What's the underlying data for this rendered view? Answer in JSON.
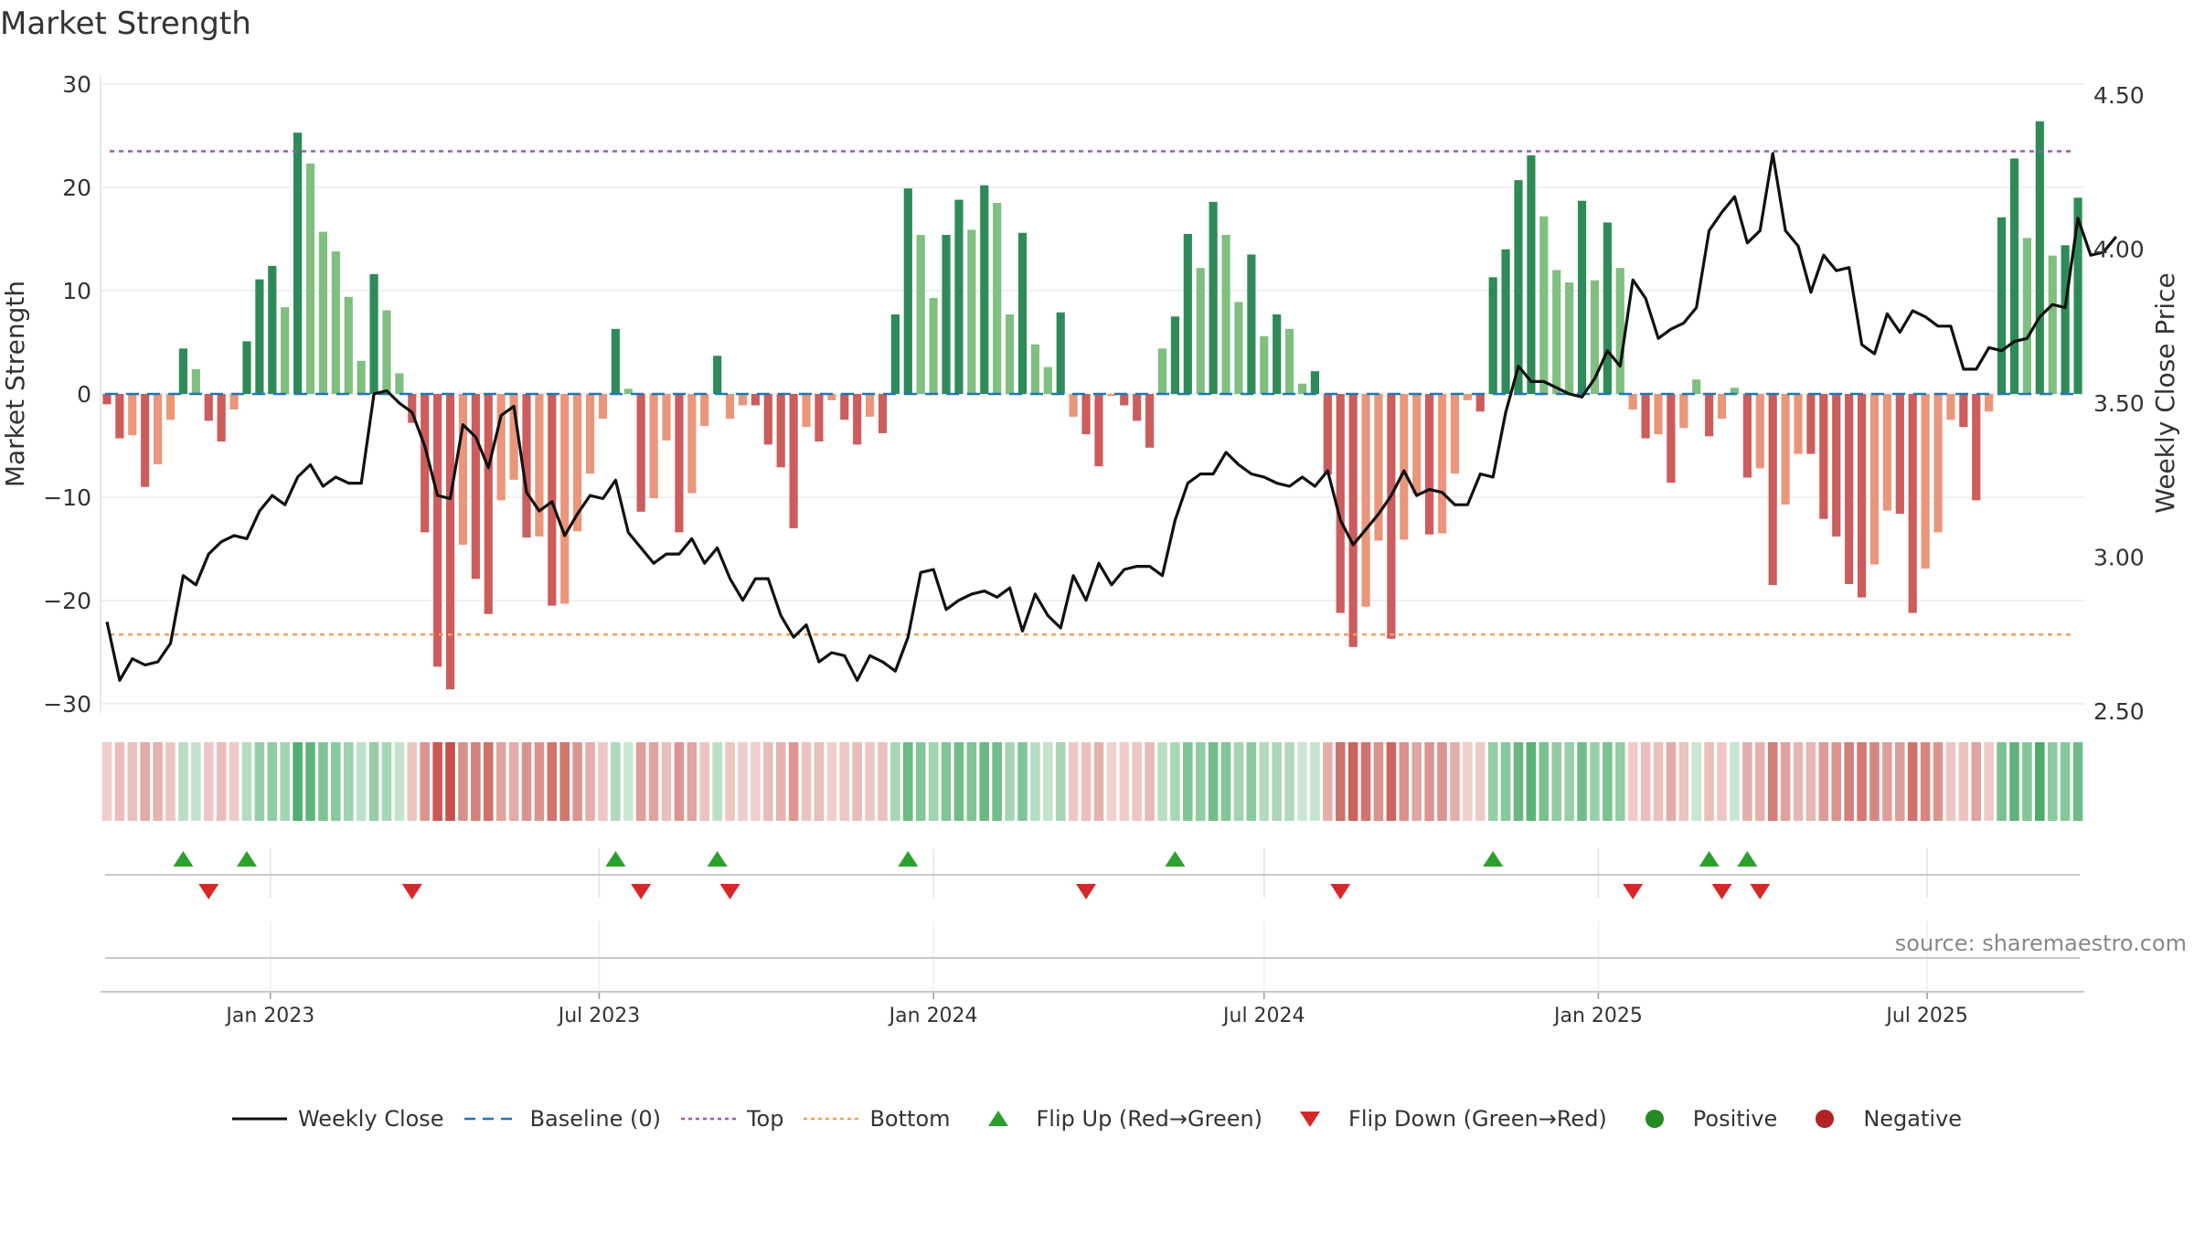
{
  "title": "Market Strength",
  "source": "source: sharemaestro.com",
  "chart_data": {
    "type": "bar",
    "weeks_start": "2022-10-03",
    "x_ticks": [
      "Jan 2023",
      "Jul 2023",
      "Jan 2024",
      "Jul 2024",
      "Jan 2025",
      "Jul 2025"
    ],
    "x_tick_dates": [
      "2023-01-01",
      "2023-07-01",
      "2024-01-01",
      "2024-07-01",
      "2025-01-01",
      "2025-07-01"
    ],
    "y_left": {
      "label": "Market Strength",
      "ylim": [
        -30,
        30
      ],
      "ticks": [
        "30",
        "20",
        "10",
        "0",
        "−10",
        "−20",
        "−30"
      ],
      "tick_values": [
        30,
        20,
        10,
        0,
        -10,
        -20,
        -30
      ]
    },
    "y_right": {
      "label": "Weekly Close Price",
      "ylim": [
        2.5,
        4.5
      ],
      "ticks": [
        "4.50",
        "4.00",
        "3.50",
        "3.00",
        "2.50"
      ],
      "tick_values": [
        4.5,
        4.0,
        3.5,
        3.0,
        2.5
      ]
    },
    "top_line": 23.5,
    "bottom_line": -23.3,
    "baseline": 0,
    "grid": true,
    "legend_position": "bottom",
    "series": [
      {
        "name": "Market Strength",
        "values": [
          -1,
          -4.3,
          -4,
          -9,
          -6.8,
          -2.5,
          4.4,
          2.4,
          -2.6,
          -4.6,
          -1.5,
          5.1,
          11.1,
          12.4,
          8.4,
          25.3,
          22.3,
          15.7,
          13.8,
          9.4,
          3.2,
          11.6,
          8.1,
          2,
          -2.8,
          -13.4,
          -26.4,
          -28.6,
          -14.6,
          -17.9,
          -21.3,
          -10.3,
          -8.3,
          -13.9,
          -13.8,
          -20.5,
          -20.3,
          -13.3,
          -7.7,
          -2.4,
          6.3,
          0.5,
          -11.4,
          -10.1,
          -4.5,
          -13.4,
          -9.6,
          -3.1,
          3.7,
          -2.4,
          -1.1,
          -1.1,
          -4.9,
          -7.1,
          -13,
          -3.2,
          -4.6,
          -0.6,
          -2.5,
          -4.9,
          -2.2,
          -3.8,
          7.7,
          19.9,
          15.4,
          9.3,
          15.4,
          18.8,
          15.9,
          20.2,
          18.5,
          7.7,
          15.6,
          4.8,
          2.6,
          7.9,
          -2.2,
          -3.9,
          -7,
          -0.2,
          -1.1,
          -2.6,
          -5.2,
          4.4,
          7.5,
          15.5,
          12.2,
          18.6,
          15.4,
          8.9,
          13.5,
          5.6,
          7.7,
          6.3,
          1,
          2.2,
          -7.8,
          -21.2,
          -24.5,
          -20.6,
          -14.2,
          -23.7,
          -14.1,
          -9.7,
          -13.6,
          -13.5,
          -7.7,
          -0.6,
          -1.7,
          11.3,
          14,
          20.7,
          23.1,
          17.2,
          12,
          10.8,
          18.7,
          11,
          16.6,
          12.2,
          -1.5,
          -4.3,
          -3.9,
          -8.6,
          -3.3,
          1.4,
          -4.1,
          -2.4,
          0.6,
          -8.1,
          -7.2,
          -18.5,
          -10.7,
          -5.8,
          -5.8,
          -12.1,
          -13.8,
          -18.4,
          -19.7,
          -16.5,
          -11.3,
          -11.6,
          -21.2,
          -16.9,
          -13.4,
          -2.5,
          -3.2,
          -10.3,
          -1.7,
          17.1,
          22.8,
          15.1,
          26.4,
          13.4,
          14.4,
          19
        ]
      },
      {
        "name": "Weekly Close",
        "values": [
          2.79,
          2.6,
          2.67,
          2.65,
          2.66,
          2.72,
          2.94,
          2.91,
          3.01,
          3.05,
          3.07,
          3.06,
          3.15,
          3.2,
          3.17,
          3.26,
          3.3,
          3.23,
          3.26,
          3.24,
          3.24,
          3.53,
          3.54,
          3.5,
          3.47,
          3.36,
          3.2,
          3.19,
          3.43,
          3.39,
          3.29,
          3.46,
          3.49,
          3.21,
          3.15,
          3.18,
          3.07,
          3.14,
          3.2,
          3.19,
          3.25,
          3.08,
          3.03,
          2.98,
          3.01,
          3.01,
          3.06,
          2.98,
          3.03,
          2.93,
          2.86,
          2.93,
          2.93,
          2.81,
          2.74,
          2.78,
          2.66,
          2.69,
          2.68,
          2.6,
          2.68,
          2.66,
          2.63,
          2.74,
          2.95,
          2.96,
          2.83,
          2.86,
          2.88,
          2.89,
          2.87,
          2.9,
          2.76,
          2.88,
          2.81,
          2.77,
          2.94,
          2.86,
          2.98,
          2.91,
          2.96,
          2.97,
          2.97,
          2.94,
          3.12,
          3.24,
          3.27,
          3.27,
          3.34,
          3.3,
          3.27,
          3.26,
          3.24,
          3.23,
          3.26,
          3.23,
          3.28,
          3.12,
          3.04,
          3.09,
          3.14,
          3.2,
          3.28,
          3.2,
          3.22,
          3.21,
          3.17,
          3.17,
          3.27,
          3.26,
          3.47,
          3.62,
          3.57,
          3.57,
          3.55,
          3.53,
          3.52,
          3.58,
          3.67,
          3.62,
          3.9,
          3.84,
          3.71,
          3.74,
          3.76,
          3.81,
          4.06,
          4.12,
          4.17,
          4.02,
          4.06,
          4.31,
          4.06,
          4.01,
          3.86,
          3.98,
          3.93,
          3.94,
          3.69,
          3.66,
          3.79,
          3.73,
          3.8,
          3.78,
          3.75,
          3.75,
          3.61,
          3.61,
          3.68,
          3.67,
          3.7,
          3.71,
          3.78,
          3.82,
          3.81,
          4.1,
          3.98,
          3.99,
          4.04
        ]
      }
    ],
    "flip_up_weeks": [
      6,
      11,
      40,
      48,
      63,
      84,
      109,
      126,
      129
    ],
    "flip_down_weeks": [
      8,
      24,
      42,
      49,
      77,
      97,
      120,
      127,
      130
    ],
    "colors": {
      "green_dark": "#2e8b57",
      "green_light": "#7fbf7f",
      "red_dark": "#cd5c5c",
      "red_light": "#e9967a",
      "top": "#9b59b6",
      "bottom": "#f0a050",
      "baseline": "#1f77b4",
      "flip_up": "#2ca02c",
      "flip_down": "#d62728",
      "positive": "#228b22",
      "negative": "#b22222"
    }
  },
  "legend": [
    {
      "key": "weekly-close",
      "label": "Weekly Close"
    },
    {
      "key": "baseline",
      "label": "Baseline (0)"
    },
    {
      "key": "top",
      "label": "Top"
    },
    {
      "key": "bottom",
      "label": "Bottom"
    },
    {
      "key": "flip-up",
      "label": "Flip Up (Red→Green)"
    },
    {
      "key": "flip-down",
      "label": "Flip Down (Green→Red)"
    },
    {
      "key": "positive",
      "label": "Positive"
    },
    {
      "key": "negative",
      "label": "Negative"
    }
  ]
}
